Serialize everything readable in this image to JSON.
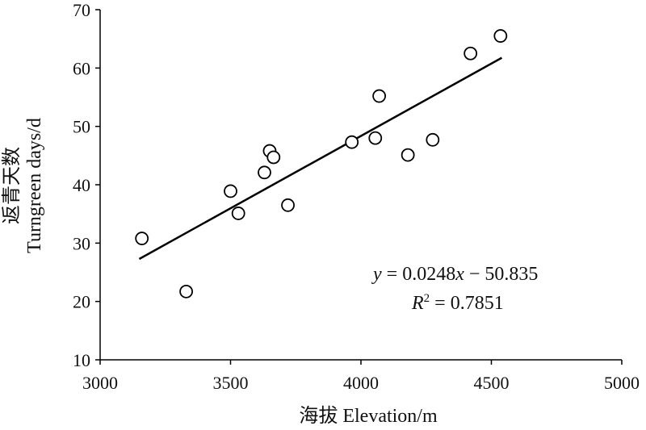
{
  "chart_data": {
    "type": "scatter",
    "title": "",
    "xlabel": "海拔 Elevation/m",
    "ylabel_line1": "返青天数",
    "ylabel_line2": "Turngreen days/d",
    "xlim": [
      3000,
      5000
    ],
    "ylim": [
      10,
      70
    ],
    "x_ticks": [
      3000,
      3500,
      4000,
      4500,
      5000
    ],
    "y_ticks": [
      10,
      20,
      30,
      40,
      50,
      60,
      70
    ],
    "grid": false,
    "legend": "none",
    "marker": "open-circle",
    "colors": {
      "marker": "#000000",
      "line": "#000000"
    },
    "points": [
      {
        "x": 3160,
        "y": 30.8
      },
      {
        "x": 3330,
        "y": 21.7
      },
      {
        "x": 3500,
        "y": 38.9
      },
      {
        "x": 3530,
        "y": 35.1
      },
      {
        "x": 3630,
        "y": 42.1
      },
      {
        "x": 3650,
        "y": 45.8
      },
      {
        "x": 3665,
        "y": 44.7
      },
      {
        "x": 3720,
        "y": 36.5
      },
      {
        "x": 3965,
        "y": 47.3
      },
      {
        "x": 4055,
        "y": 48.0
      },
      {
        "x": 4070,
        "y": 55.2
      },
      {
        "x": 4180,
        "y": 45.1
      },
      {
        "x": 4275,
        "y": 47.7
      },
      {
        "x": 4420,
        "y": 62.5
      },
      {
        "x": 4535,
        "y": 65.5
      }
    ],
    "trendline": {
      "slope": 0.0248,
      "intercept": -50.835,
      "x_range": [
        3150,
        4540
      ]
    },
    "annotation": {
      "eq_lhs": "y",
      "eq_rhs_a": " = 0.0248",
      "eq_var": "x",
      "eq_rhs_b": " −  50.835",
      "r2_lhs": "R",
      "r2_sup": "2",
      "r2_rhs": " = 0.7851"
    }
  }
}
